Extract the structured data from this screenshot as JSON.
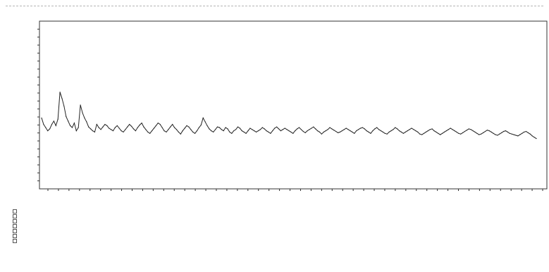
{
  "title": "",
  "chart_data": {
    "type": "line",
    "title": "",
    "xlabel": "",
    "ylabel": "",
    "x_start": 1,
    "x_end": 235,
    "xlim": [
      0,
      240
    ],
    "ylim": [
      0,
      260
    ],
    "grid": false,
    "legend": "none",
    "line_color": "#222222",
    "series": [
      {
        "values": [
          110,
          100,
          95,
          90,
          93,
          100,
          105,
          98,
          108,
          150,
          140,
          128,
          112,
          105,
          98,
          95,
          102,
          90,
          95,
          130,
          118,
          110,
          104,
          96,
          93,
          90,
          88,
          100,
          95,
          92,
          96,
          100,
          98,
          94,
          92,
          90,
          95,
          98,
          94,
          90,
          88,
          92,
          96,
          100,
          97,
          93,
          90,
          95,
          99,
          102,
          96,
          92,
          88,
          86,
          90,
          94,
          98,
          102,
          100,
          95,
          90,
          88,
          92,
          96,
          100,
          95,
          92,
          88,
          85,
          90,
          94,
          98,
          96,
          92,
          88,
          86,
          90,
          95,
          99,
          110,
          104,
          98,
          93,
          90,
          88,
          92,
          96,
          95,
          92,
          90,
          95,
          93,
          88,
          86,
          90,
          92,
          96,
          94,
          90,
          88,
          86,
          90,
          94,
          92,
          90,
          88,
          90,
          92,
          95,
          93,
          90,
          88,
          86,
          90,
          94,
          96,
          93,
          90,
          92,
          94,
          92,
          90,
          88,
          86,
          90,
          93,
          95,
          92,
          89,
          87,
          90,
          92,
          94,
          96,
          93,
          90,
          88,
          85,
          88,
          90,
          92,
          95,
          93,
          91,
          89,
          87,
          88,
          90,
          92,
          94,
          92,
          90,
          88,
          86,
          90,
          92,
          94,
          95,
          93,
          90,
          88,
          86,
          90,
          93,
          95,
          92,
          90,
          88,
          86,
          85,
          88,
          90,
          92,
          95,
          93,
          90,
          88,
          86,
          88,
          90,
          92,
          94,
          92,
          90,
          88,
          85,
          84,
          86,
          88,
          90,
          92,
          93,
          90,
          88,
          86,
          84,
          86,
          88,
          90,
          92,
          94,
          92,
          90,
          88,
          86,
          85,
          87,
          89,
          91,
          93,
          92,
          90,
          88,
          86,
          84,
          85,
          87,
          89,
          91,
          90,
          88,
          86,
          84,
          83,
          85,
          87,
          89,
          90,
          88,
          86,
          85,
          84,
          83,
          82,
          84,
          86,
          88,
          89,
          87,
          85,
          82,
          80,
          78
        ]
      }
    ],
    "y_ticks": [
      "",
      "",
      "",
      "",
      "",
      "",
      "",
      "",
      "",
      "",
      "",
      "",
      "",
      "",
      "",
      "",
      "",
      "",
      "",
      ""
    ],
    "x_ticks": [
      "",
      "",
      "",
      "",
      "",
      "",
      "",
      "",
      "",
      "",
      "",
      "",
      "",
      "",
      "",
      "",
      "",
      "",
      "",
      "",
      "",
      "",
      "",
      "",
      "",
      "",
      "",
      "",
      "",
      "",
      "",
      "",
      "",
      "",
      "",
      "",
      "",
      "",
      "",
      "",
      "",
      "",
      "",
      "",
      "",
      "",
      "",
      ""
    ]
  },
  "legend_block": {
    "lines": [
      "",
      "",
      "",
      "",
      "",
      "",
      ""
    ]
  },
  "footer": {
    "left_label": "",
    "left_text": "",
    "mid_lines": [
      "",
      "",
      ""
    ],
    "right_label": ""
  }
}
